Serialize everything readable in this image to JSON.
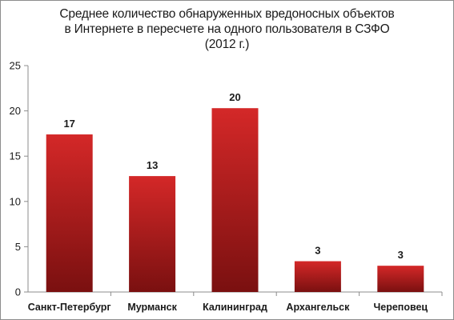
{
  "chart_data": {
    "type": "bar",
    "title_lines": [
      "Среднее количество обнаруженных вредоносных объектов",
      "в Интернете в пересчете на одного пользователя в СЗФО",
      "(2012 г.)"
    ],
    "categories": [
      "Санкт-Петербург",
      "Мурманск",
      "Калининград",
      "Архангельск",
      "Череповец"
    ],
    "values": [
      17.4,
      12.8,
      20.3,
      3.4,
      2.9
    ],
    "data_labels": [
      "17",
      "13",
      "20",
      "3",
      "3"
    ],
    "yticks": [
      0,
      5,
      10,
      15,
      20,
      25
    ],
    "ylim": [
      0,
      25
    ],
    "xlabel": "",
    "ylabel": "",
    "grid": false,
    "legend": "none",
    "colors": {
      "bar_top": "#d42828",
      "bar_bottom": "#7a1010",
      "axis": "#8c8c8c"
    }
  }
}
